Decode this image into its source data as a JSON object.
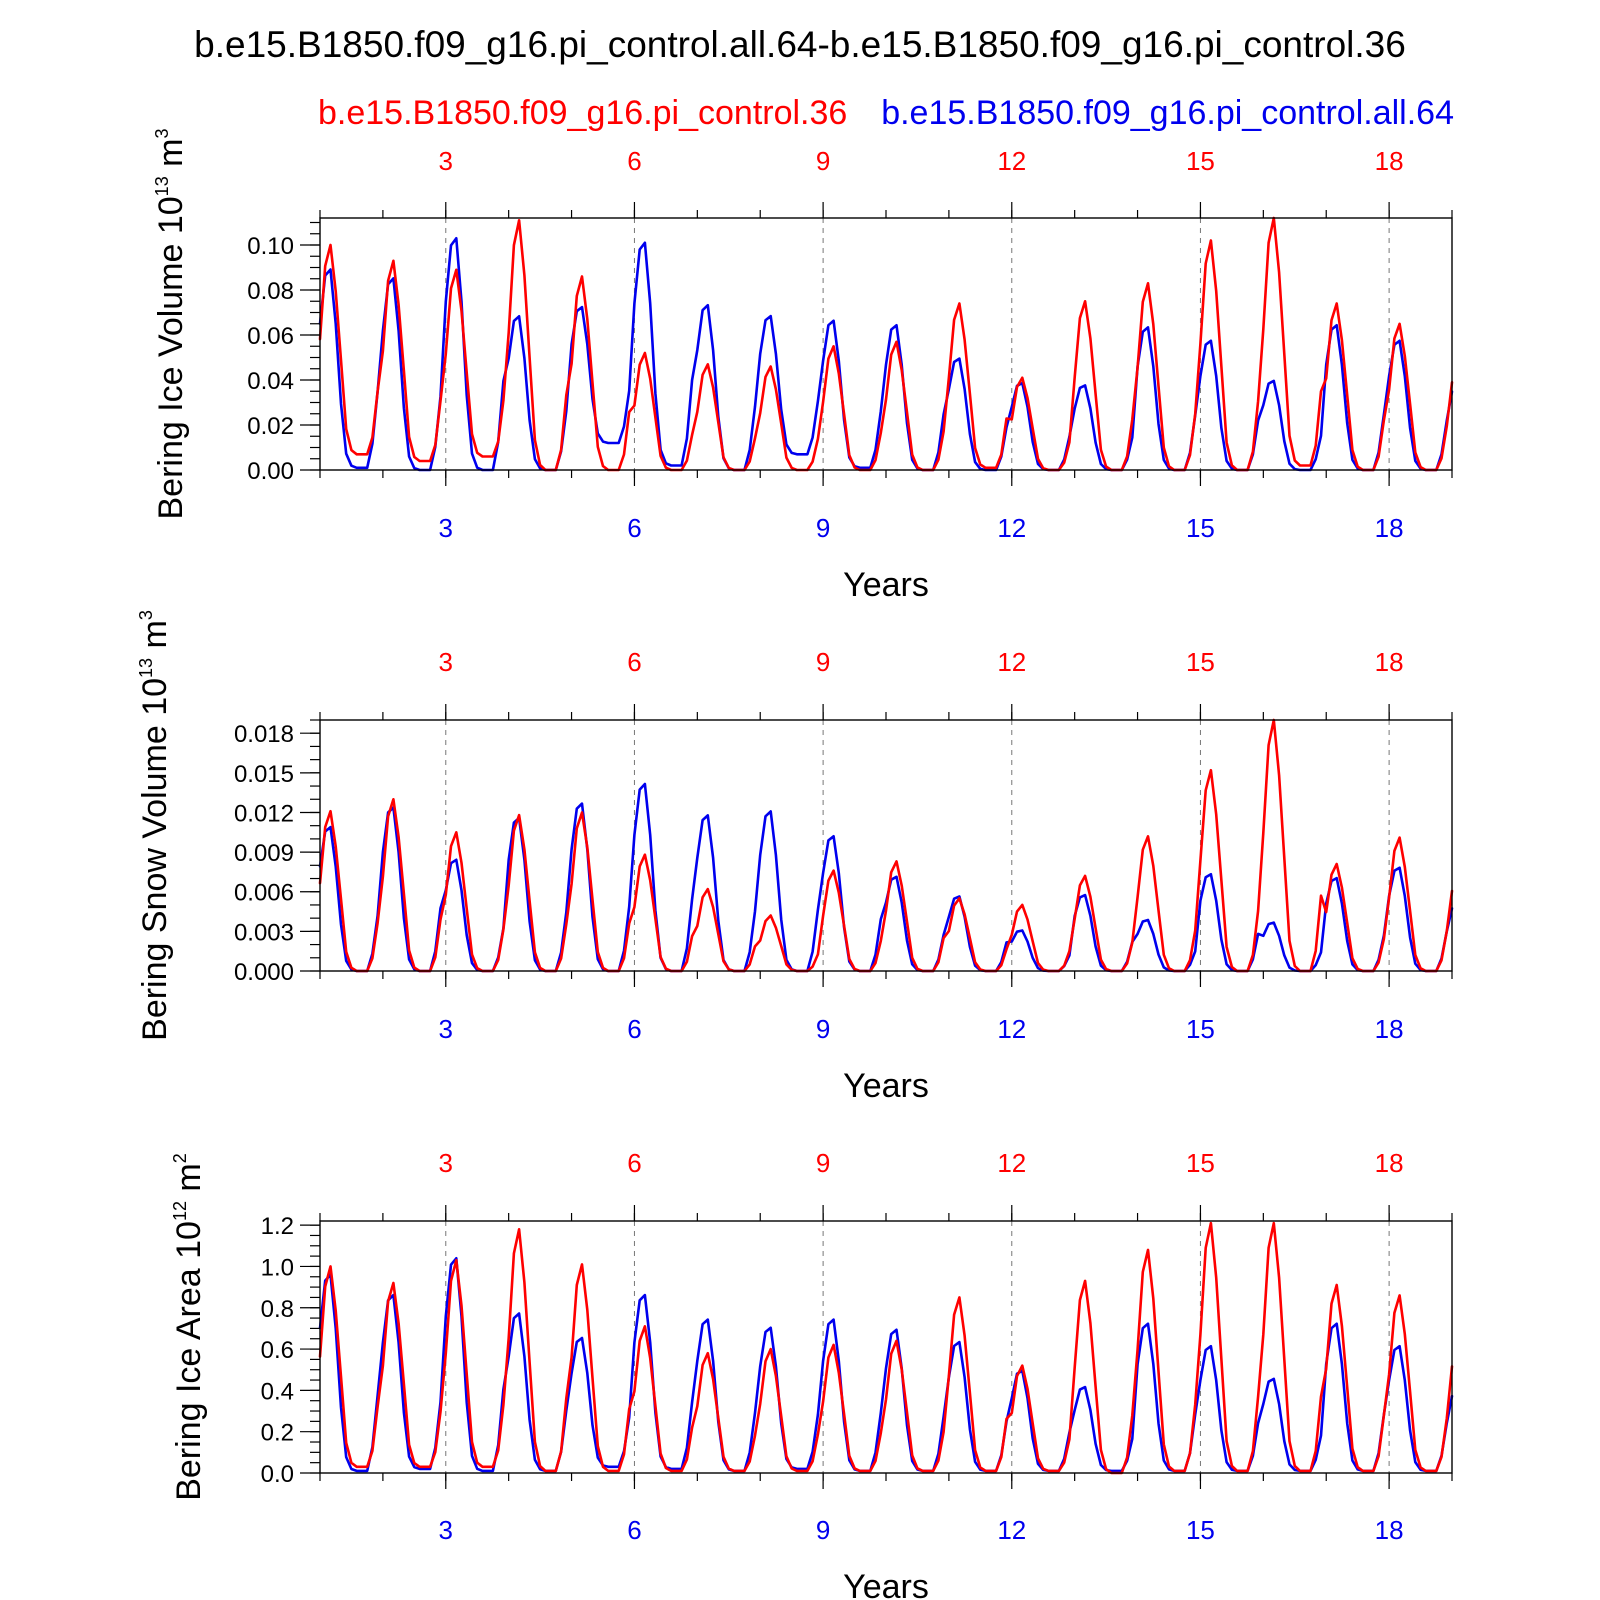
{
  "figure_title": "b.e15.B1850.f09_g16.pi_control.all.64-b.e15.B1850.f09_g16.pi_control.36",
  "legend": {
    "red_label": "b.e15.B1850.f09_g16.pi_control.36",
    "blue_label": "b.e15.B1850.f09_g16.pi_control.all.64"
  },
  "colors": {
    "red": "#ff0000",
    "blue": "#0000ee",
    "axis": "#000000"
  },
  "xaxis": {
    "label": "Years",
    "tick_values": [
      3,
      6,
      9,
      12,
      15,
      18
    ],
    "tick_labels": [
      "3",
      "6",
      "9",
      "12",
      "15",
      "18"
    ],
    "range": [
      1,
      19
    ]
  },
  "chart_data": [
    {
      "type": "line",
      "id": "ice-volume",
      "ylabel": "Bering Ice Volume 10",
      "ylabel_exponent": "13",
      "ylabel_unit": " m",
      "ylabel_unit_exponent": "3",
      "xlabel": "Years",
      "ylim": [
        0,
        0.112
      ],
      "y_tick_values": [
        0,
        0.02,
        0.04,
        0.06,
        0.08,
        0.1
      ],
      "y_tick_labels": [
        "0.00",
        "0.02",
        "0.04",
        "0.06",
        "0.08",
        "0.10"
      ],
      "y_minor_step": 0.005,
      "annual_peaks": {
        "red": [
          0.1,
          0.093,
          0.089,
          0.111,
          0.086,
          0.052,
          0.047,
          0.046,
          0.055,
          0.057,
          0.074,
          0.041,
          0.075,
          0.083,
          0.102,
          0.112,
          0.074,
          0.065
        ],
        "blue": [
          0.09,
          0.086,
          0.104,
          0.069,
          0.073,
          0.102,
          0.074,
          0.069,
          0.067,
          0.065,
          0.05,
          0.039,
          0.038,
          0.064,
          0.058,
          0.04,
          0.065,
          0.058
        ]
      },
      "annual_minima": {
        "red": [
          0.007,
          0.004,
          0.006,
          0.0,
          0.0,
          0.0,
          0.0,
          0.0,
          0.0,
          0.0,
          0.001,
          0.0,
          0.0,
          0.0,
          0.0,
          0.002,
          0.0,
          0.0
        ],
        "blue": [
          0.001,
          0.0,
          0.0,
          0.0,
          0.012,
          0.002,
          0.0,
          0.007,
          0.001,
          0.0,
          0.0,
          0.0,
          0.0,
          0.0,
          0.0,
          0.0,
          0.0,
          0.0
        ]
      },
      "series_names": [
        "b.e15.B1850.f09_g16.pi_control.36",
        "b.e15.B1850.f09_g16.pi_control.all.64"
      ]
    },
    {
      "type": "line",
      "id": "snow-volume",
      "ylabel": "Bering Snow Volume 10",
      "ylabel_exponent": "13",
      "ylabel_unit": " m",
      "ylabel_unit_exponent": "3",
      "xlabel": "Years",
      "ylim": [
        0,
        0.019
      ],
      "y_tick_values": [
        0,
        0.003,
        0.006,
        0.009,
        0.012,
        0.015,
        0.018
      ],
      "y_tick_labels": [
        "0.000",
        "0.003",
        "0.006",
        "0.009",
        "0.012",
        "0.015",
        "0.018"
      ],
      "y_minor_step": 0.001,
      "annual_peaks": {
        "red": [
          0.0121,
          0.013,
          0.0105,
          0.0118,
          0.012,
          0.0088,
          0.0062,
          0.0042,
          0.0076,
          0.0083,
          0.0055,
          0.005,
          0.0072,
          0.0102,
          0.0152,
          0.019,
          0.0081,
          0.0101
        ],
        "blue": [
          0.011,
          0.0125,
          0.0085,
          0.0117,
          0.0128,
          0.0143,
          0.0119,
          0.0122,
          0.0103,
          0.0072,
          0.0057,
          0.0031,
          0.0058,
          0.0039,
          0.0074,
          0.0037,
          0.0071,
          0.0079
        ]
      },
      "annual_minima": {
        "red": [
          0,
          0,
          0,
          0,
          0,
          0,
          0,
          0,
          0,
          0,
          0,
          0,
          0,
          0,
          0,
          0,
          0,
          0
        ],
        "blue": [
          0,
          0,
          0,
          0,
          0,
          0,
          0,
          0,
          0,
          0,
          0,
          0,
          0,
          0,
          0,
          0,
          0,
          0
        ]
      },
      "series_names": [
        "b.e15.B1850.f09_g16.pi_control.36",
        "b.e15.B1850.f09_g16.pi_control.all.64"
      ]
    },
    {
      "type": "line",
      "id": "ice-area",
      "ylabel": "Bering Ice Area 10",
      "ylabel_exponent": "12",
      "ylabel_unit": " m",
      "ylabel_unit_exponent": "2",
      "xlabel": "Years",
      "ylim": [
        0,
        1.22
      ],
      "y_tick_values": [
        0,
        0.2,
        0.4,
        0.6,
        0.8,
        1.0,
        1.2
      ],
      "y_tick_labels": [
        "0.0",
        "0.2",
        "0.4",
        "0.6",
        "0.8",
        "1.0",
        "1.2"
      ],
      "y_minor_step": 0.05,
      "annual_peaks": {
        "red": [
          1.0,
          0.92,
          1.03,
          1.18,
          1.01,
          0.71,
          0.58,
          0.6,
          0.62,
          0.64,
          0.85,
          0.52,
          0.93,
          1.08,
          1.21,
          1.21,
          0.91,
          0.86
        ],
        "blue": [
          0.97,
          0.87,
          1.05,
          0.78,
          0.66,
          0.87,
          0.75,
          0.71,
          0.75,
          0.7,
          0.64,
          0.5,
          0.42,
          0.73,
          0.62,
          0.46,
          0.73,
          0.62
        ]
      },
      "annual_minima": {
        "red": [
          0.03,
          0.03,
          0.03,
          0.01,
          0.01,
          0.01,
          0.01,
          0.01,
          0.01,
          0.01,
          0.01,
          0.01,
          0.0,
          0.01,
          0.01,
          0.01,
          0.01,
          0.01
        ],
        "blue": [
          0.01,
          0.02,
          0.01,
          0.01,
          0.03,
          0.02,
          0.01,
          0.02,
          0.01,
          0.01,
          0.01,
          0.01,
          0.01,
          0.01,
          0.01,
          0.01,
          0.01,
          0.01
        ]
      },
      "series_names": [
        "b.e15.B1850.f09_g16.pi_control.36",
        "b.e15.B1850.f09_g16.pi_control.all.64"
      ]
    }
  ]
}
